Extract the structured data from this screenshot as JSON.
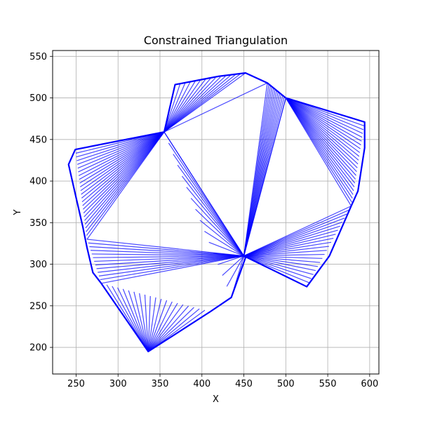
{
  "chart_data": {
    "type": "line",
    "title": "Constrained Triangulation",
    "xlabel": "X",
    "ylabel": "Y",
    "xlim": [
      222,
      611
    ],
    "ylim": [
      168,
      557
    ],
    "xticks": [
      250,
      300,
      350,
      400,
      450,
      500,
      550,
      600
    ],
    "yticks": [
      200,
      250,
      300,
      350,
      400,
      450,
      500,
      550
    ],
    "grid": true,
    "line_color": "#0000ff",
    "polygon": [
      [
        452,
        308
      ],
      [
        435,
        260
      ],
      [
        410,
        243
      ],
      [
        336,
        195
      ],
      [
        280,
        277
      ],
      [
        270,
        290
      ],
      [
        263,
        320
      ],
      [
        258,
        345
      ],
      [
        250,
        380
      ],
      [
        241,
        420
      ],
      [
        249,
        438
      ],
      [
        355,
        459
      ],
      [
        368,
        516
      ],
      [
        420,
        526
      ],
      [
        452,
        530
      ],
      [
        478,
        518
      ],
      [
        500,
        500
      ],
      [
        594,
        471
      ],
      [
        594,
        440
      ],
      [
        586,
        388
      ],
      [
        578,
        370
      ],
      [
        552,
        310
      ],
      [
        525,
        273
      ],
      [
        450,
        310
      ]
    ],
    "fan_anchors": [
      {
        "center": [
          450,
          310
        ],
        "from": [
          355,
          459
        ],
        "to": [
          435,
          260
        ],
        "samples": 15
      },
      {
        "center": [
          355,
          459
        ],
        "from": [
          249,
          438
        ],
        "to": [
          263,
          330
        ],
        "samples": 24
      },
      {
        "center": [
          450,
          310
        ],
        "from": [
          263,
          330
        ],
        "to": [
          280,
          277
        ],
        "samples": 12
      },
      {
        "center": [
          336,
          195
        ],
        "from": [
          280,
          277
        ],
        "to": [
          410,
          243
        ],
        "samples": 20
      },
      {
        "center": [
          355,
          459
        ],
        "from": [
          368,
          516
        ],
        "to": [
          452,
          530
        ],
        "samples": 14
      },
      {
        "center": [
          450,
          310
        ],
        "from": [
          478,
          518
        ],
        "to": [
          500,
          500
        ],
        "samples": 12
      },
      {
        "center": [
          500,
          500
        ],
        "from": [
          594,
          471
        ],
        "to": [
          578,
          370
        ],
        "samples": 22
      },
      {
        "center": [
          450,
          310
        ],
        "from": [
          578,
          370
        ],
        "to": [
          525,
          273
        ],
        "samples": 20
      }
    ],
    "extra_edges": [
      [
        [
          355,
          459
        ],
        [
          478,
          518
        ]
      ],
      [
        [
          355,
          459
        ],
        [
          450,
          310
        ]
      ],
      [
        [
          450,
          310
        ],
        [
          500,
          500
        ]
      ],
      [
        [
          478,
          518
        ],
        [
          500,
          500
        ]
      ]
    ]
  }
}
